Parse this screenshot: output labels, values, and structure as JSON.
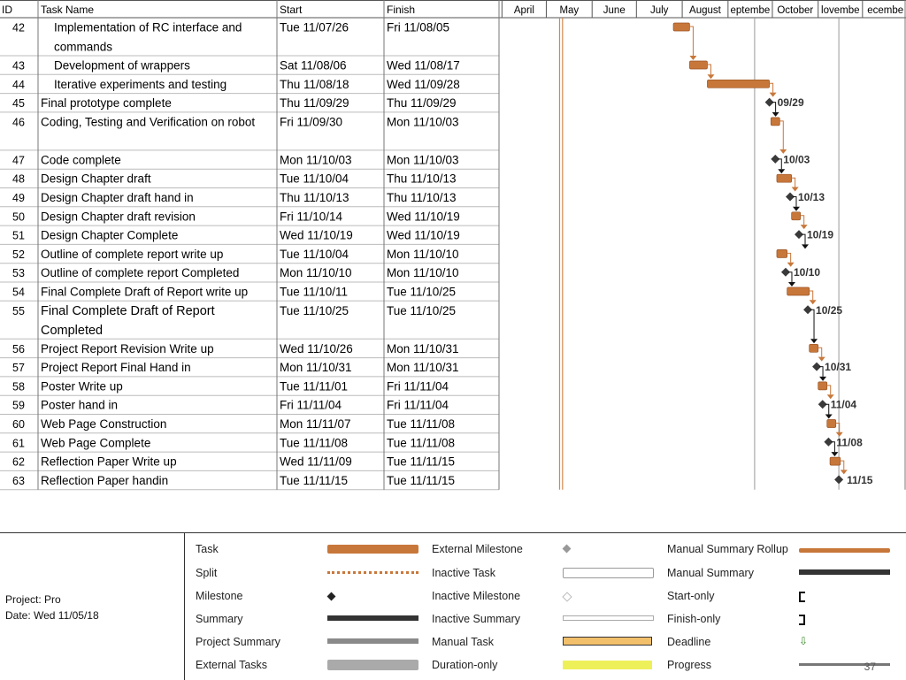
{
  "table": {
    "headers": {
      "id": "ID",
      "name": "Task Name",
      "start": "Start",
      "finish": "Finish"
    },
    "months": [
      "April",
      "May",
      "June",
      "July",
      "August",
      "eptembe",
      "October",
      "lovembe",
      "ecembe"
    ]
  },
  "chart_data": {
    "type": "gantt",
    "rows": [
      {
        "id": "42",
        "name": "Implementation of RC interface and",
        "name2": "commands",
        "start": "Tue 11/07/26",
        "finish": "Fri 11/08/05",
        "kind": "task",
        "indent": true,
        "tall": true
      },
      {
        "id": "43",
        "name": "Development of wrappers",
        "start": "Sat 11/08/06",
        "finish": "Wed 11/08/17",
        "kind": "task",
        "indent": true
      },
      {
        "id": "44",
        "name": "Iterative experiments and testing",
        "start": "Thu 11/08/18",
        "finish": "Wed 11/09/28",
        "kind": "task",
        "indent": true
      },
      {
        "id": "45",
        "name": "Final prototype complete",
        "start": "Thu 11/09/29",
        "finish": "Thu 11/09/29",
        "kind": "milestone",
        "label": "09/29"
      },
      {
        "id": "46",
        "name": "Coding, Testing and Verification on robot",
        "start": "Fri 11/09/30",
        "finish": "Mon 11/10/03",
        "kind": "task",
        "tall": true
      },
      {
        "id": "47",
        "name": "Code complete",
        "start": "Mon 11/10/03",
        "finish": "Mon 11/10/03",
        "kind": "milestone",
        "label": "10/03"
      },
      {
        "id": "48",
        "name": "Design Chapter draft",
        "start": "Tue 11/10/04",
        "finish": "Thu 11/10/13",
        "kind": "task"
      },
      {
        "id": "49",
        "name": "Design Chapter draft hand in",
        "start": "Thu 11/10/13",
        "finish": "Thu 11/10/13",
        "kind": "milestone",
        "label": "10/13"
      },
      {
        "id": "50",
        "name": "Design Chapter draft revision",
        "start": "Fri 11/10/14",
        "finish": "Wed 11/10/19",
        "kind": "task"
      },
      {
        "id": "51",
        "name": "Design Chapter Complete",
        "start": "Wed 11/10/19",
        "finish": "Wed 11/10/19",
        "kind": "milestone",
        "label": "10/19"
      },
      {
        "id": "52",
        "name": "Outline of complete report  write up",
        "start": "Tue 11/10/04",
        "finish": "Mon 11/10/10",
        "kind": "task"
      },
      {
        "id": "53",
        "name": "Outline of complete report Completed",
        "start": "Mon 11/10/10",
        "finish": "Mon 11/10/10",
        "kind": "milestone",
        "label": "10/10"
      },
      {
        "id": "54",
        "name": "Final Complete Draft of Report write up",
        "start": "Tue 11/10/11",
        "finish": "Tue 11/10/25",
        "kind": "task"
      },
      {
        "id": "55",
        "name": "Final Complete Draft of Report",
        "name2": "Completed",
        "start": "Tue 11/10/25",
        "finish": "Tue 11/10/25",
        "kind": "milestone",
        "label": "10/25",
        "tall": true,
        "big": true
      },
      {
        "id": "56",
        "name": "Project Report Revision Write up",
        "start": "Wed 11/10/26",
        "finish": "Mon 11/10/31",
        "kind": "task"
      },
      {
        "id": "57",
        "name": "Project Report Final Hand in",
        "start": "Mon 11/10/31",
        "finish": "Mon 11/10/31",
        "kind": "milestone",
        "label": "10/31"
      },
      {
        "id": "58",
        "name": "Poster Write up",
        "start": "Tue 11/11/01",
        "finish": "Fri 11/11/04",
        "kind": "task"
      },
      {
        "id": "59",
        "name": "Poster hand in",
        "start": "Fri 11/11/04",
        "finish": "Fri 11/11/04",
        "kind": "milestone",
        "label": "11/04"
      },
      {
        "id": "60",
        "name": "Web Page Construction",
        "start": "Mon 11/11/07",
        "finish": "Tue 11/11/08",
        "kind": "task"
      },
      {
        "id": "61",
        "name": "Web Page Complete",
        "start": "Tue 11/11/08",
        "finish": "Tue 11/11/08",
        "kind": "milestone",
        "label": "11/08"
      },
      {
        "id": "62",
        "name": "Reflection Paper Write up",
        "start": "Wed 11/11/09",
        "finish": "Tue 11/11/15",
        "kind": "task"
      },
      {
        "id": "63",
        "name": "Reflection Paper handin",
        "start": "Tue 11/11/15",
        "finish": "Tue 11/11/15",
        "kind": "milestone",
        "label": "11/15"
      }
    ]
  },
  "legend": {
    "project": "Project: Pro",
    "date": "Date: Wed 11/05/18",
    "col1": [
      "Task",
      "Split",
      "Milestone",
      "Summary",
      "Project Summary",
      "External Tasks"
    ],
    "col2": [
      "External Milestone",
      "Inactive Task",
      "Inactive Milestone",
      "Inactive Summary",
      "Manual Task",
      "Duration-only"
    ],
    "col3": [
      "Manual Summary Rollup",
      "Manual Summary",
      "Start-only",
      "Finish-only",
      "Deadline",
      "Progress"
    ]
  },
  "page_number": "37",
  "colors": {
    "bar": "#c8773a",
    "bar_dark": "#9a5322",
    "milestone": "#3a3a3a",
    "grid": "#9a9a9a",
    "today_line": "#d08850"
  }
}
